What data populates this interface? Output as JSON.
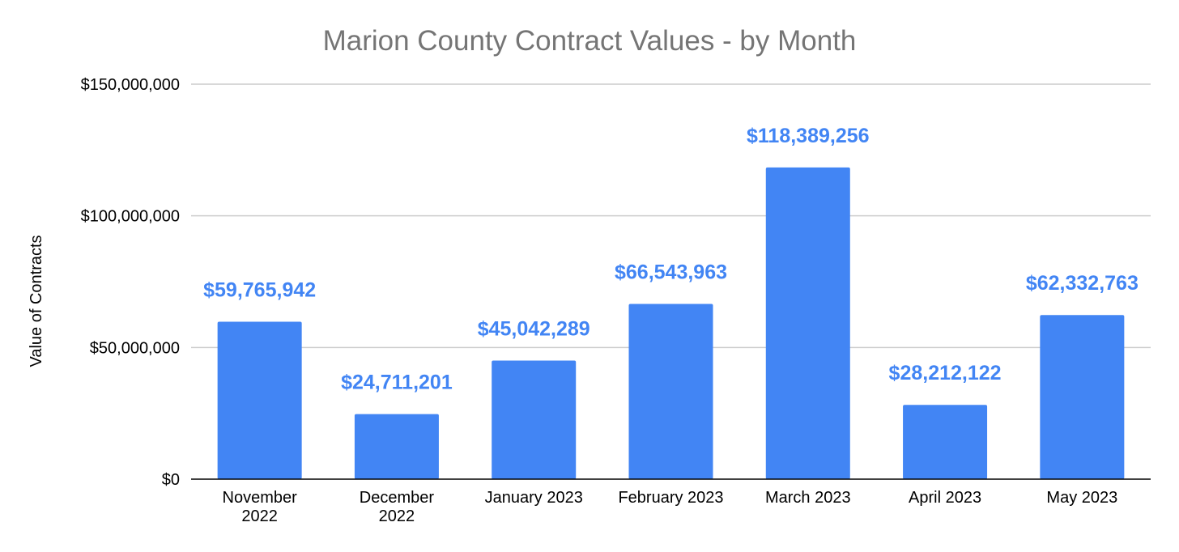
{
  "chart_data": {
    "type": "bar",
    "title": "Marion County Contract Values - by Month",
    "xlabel": "",
    "ylabel": "Value of Contracts",
    "ylim": [
      0,
      150000000
    ],
    "y_ticks": [
      0,
      50000000,
      100000000,
      150000000
    ],
    "y_tick_labels": [
      "$0",
      "$50,000,000",
      "$100,000,000",
      "$150,000,000"
    ],
    "grid": true,
    "legend": "none",
    "categories": [
      [
        "November",
        "2022"
      ],
      [
        "December",
        "2022"
      ],
      [
        "January 2023"
      ],
      [
        "February 2023"
      ],
      [
        "March 2023"
      ],
      [
        "April 2023"
      ],
      [
        "May 2023"
      ]
    ],
    "values": [
      59765942,
      24711201,
      45042289,
      66543963,
      118389256,
      28212122,
      62332763
    ],
    "data_labels": [
      "$59,765,942",
      "$24,711,201",
      "$45,042,289",
      "$66,543,963",
      "$118,389,256",
      "$28,212,122",
      "$62,332,763"
    ],
    "colors": {
      "bar": "#4285f4",
      "data_label": "#4285f4",
      "grid": "#cccccc",
      "axis": "#000000",
      "title": "#757575"
    }
  }
}
